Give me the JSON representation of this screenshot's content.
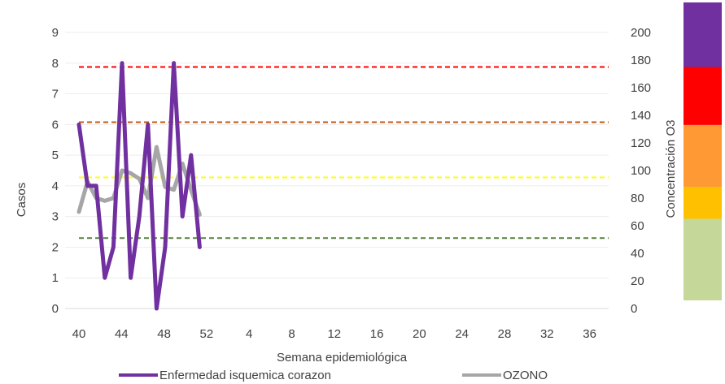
{
  "chart_data": {
    "type": "line",
    "xlabel": "Semana epidemiológica",
    "ylabel": "Casos",
    "y2label": "Concentración O3",
    "x_ticks": [
      "40",
      "44",
      "48",
      "52",
      "4",
      "8",
      "12",
      "16",
      "20",
      "24",
      "28",
      "32",
      "36"
    ],
    "x_weeks": [
      "40",
      "41",
      "42",
      "43",
      "44",
      "45",
      "46",
      "47",
      "48",
      "49",
      "50",
      "51",
      "52",
      "53",
      "1"
    ],
    "ylim": [
      0,
      9
    ],
    "y_ticks": [
      0,
      1,
      2,
      3,
      4,
      5,
      6,
      7,
      8,
      9
    ],
    "y2lim": [
      0,
      200
    ],
    "y2_ticks": [
      0,
      20,
      40,
      60,
      80,
      100,
      120,
      140,
      160,
      180,
      200
    ],
    "grid": true,
    "legend_position": "bottom",
    "series": [
      {
        "name": "Enfermedad isquemica corazon",
        "axis": "left",
        "color": "#7030A0",
        "values": [
          6,
          4,
          4,
          1,
          2,
          8,
          1,
          3,
          6,
          0,
          2,
          8,
          3,
          5,
          2
        ]
      },
      {
        "name": "OZONO",
        "axis": "right",
        "color": "#A6A6A6",
        "values": [
          70,
          92,
          80,
          78,
          80,
          100,
          98,
          94,
          80,
          117,
          88,
          86,
          105,
          86,
          68
        ]
      }
    ],
    "thresholds": [
      {
        "value": 175,
        "color": "#FF0000"
      },
      {
        "value": 135,
        "color": "#C55A11"
      },
      {
        "value": 95,
        "color": "#FFFF00"
      },
      {
        "value": 51,
        "color": "#548235"
      }
    ],
    "scale_bands": [
      {
        "from": 0,
        "to": 65,
        "color": "#C5D89A"
      },
      {
        "from": 65,
        "to": 88,
        "color": "#FFC000"
      },
      {
        "from": 88,
        "to": 133,
        "color": "#FF9933"
      },
      {
        "from": 133,
        "to": 175,
        "color": "#FF0000"
      },
      {
        "from": 175,
        "to": 202,
        "color": "#7030A0"
      }
    ]
  }
}
